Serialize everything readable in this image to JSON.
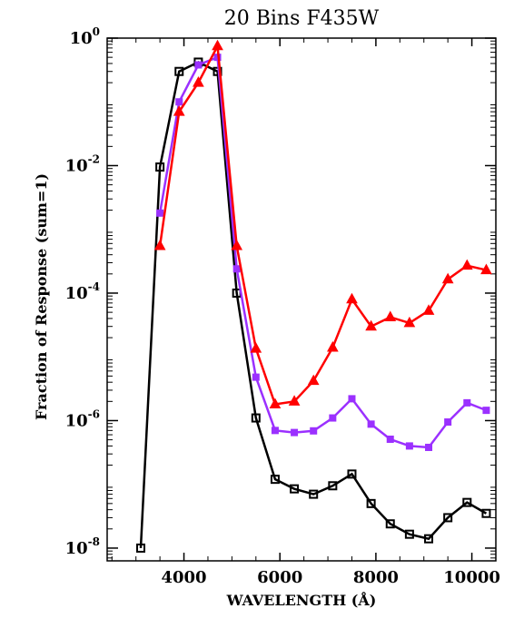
{
  "chart_data": {
    "type": "line",
    "title": "20 Bins F435W",
    "xlabel": "WAVELENGTH (Å)",
    "ylabel": "Fraction of Response (sum=1)",
    "xlim": [
      2400,
      10500
    ],
    "ylim_log10": [
      -8.2,
      0
    ],
    "yscale": "log",
    "xticks": [
      4000,
      6000,
      8000,
      10000
    ],
    "xtick_labels": [
      "4000",
      "6000",
      "8000",
      "10000"
    ],
    "yticks_exp": [
      0,
      -2,
      -4,
      -6,
      -8
    ],
    "ytick_base": "10",
    "ytick_exponent_labels": [
      "0",
      "-2",
      "-4",
      "-6",
      "-8"
    ],
    "series": [
      {
        "color": "#000000",
        "marker": "open-square",
        "x": [
          3100,
          3500,
          3900,
          4300,
          4700,
          5100,
          5500,
          5900,
          6300,
          6700,
          7100,
          7500,
          7900,
          8300,
          8700,
          9100,
          9500,
          9900,
          10300
        ],
        "y": [
          1e-08,
          0.0095,
          0.3,
          0.42,
          0.3,
          0.0001,
          1.1e-06,
          1.2e-07,
          8.5e-08,
          7e-08,
          9.5e-08,
          1.45e-07,
          5e-08,
          2.4e-08,
          1.65e-08,
          1.4e-08,
          3e-08,
          5.2e-08,
          3.5e-08
        ]
      },
      {
        "color": "#9b30ff",
        "marker": "filled-square",
        "x": [
          3500,
          3900,
          4300,
          4700,
          5100,
          5500,
          5900,
          6300,
          6700,
          7100,
          7500,
          7900,
          8300,
          8700,
          9100,
          9500,
          9900,
          10300
        ],
        "y": [
          0.0018,
          0.1,
          0.38,
          0.5,
          0.00024,
          4.8e-06,
          7e-07,
          6.5e-07,
          6.9e-07,
          1.1e-06,
          2.2e-06,
          8.8e-07,
          5.1e-07,
          4e-07,
          3.8e-07,
          9.5e-07,
          1.9e-06,
          1.45e-06
        ]
      },
      {
        "color": "#ff0000",
        "marker": "filled-triangle",
        "x": [
          3500,
          3900,
          4300,
          4700,
          5100,
          5500,
          5900,
          6300,
          6700,
          7100,
          7500,
          7900,
          8300,
          8700,
          9100,
          9500,
          9900,
          10300
        ],
        "y": [
          0.00055,
          0.07,
          0.2,
          0.75,
          0.00055,
          1.35e-05,
          1.8e-06,
          2e-06,
          4.2e-06,
          1.4e-05,
          8e-05,
          3e-05,
          4.2e-05,
          3.4e-05,
          5.3e-05,
          0.000165,
          0.00027,
          0.00023
        ]
      }
    ]
  }
}
